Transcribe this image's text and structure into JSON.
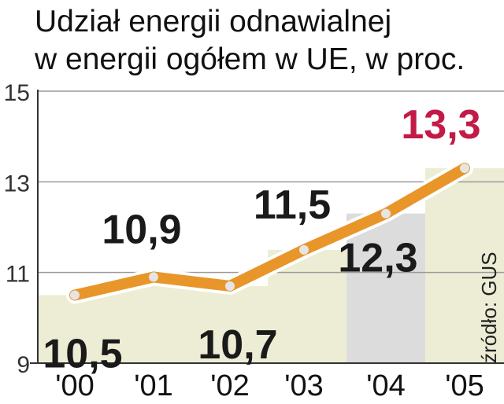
{
  "title_lines": [
    "Udział energii odnawialnej",
    "w energii ogółem w UE, w proc."
  ],
  "source": "źródło: GUS",
  "colors": {
    "line": "#e8962a",
    "marker": "#e5e5e5",
    "highlight_label": "#c41a48",
    "label": "#1a1a1a",
    "bar_light": "#ededd6",
    "bar_grey": "#dcdcdc",
    "axis": "#333333",
    "grid": "#9a9a9a"
  },
  "chart_data": {
    "type": "line",
    "title": "Udział energii odnawialnej w energii ogółem w UE, w proc.",
    "categories": [
      "'00",
      "'01",
      "'02",
      "'03",
      "'04",
      "'05"
    ],
    "values": [
      10.5,
      10.9,
      10.7,
      11.5,
      12.3,
      13.3
    ],
    "value_labels": [
      "10,5",
      "10,9",
      "10,7",
      "11,5",
      "12,3",
      "13,3"
    ],
    "y_ticks": [
      9,
      11,
      13,
      15
    ],
    "ylim": [
      9,
      15
    ],
    "xlabel": "",
    "ylabel": "",
    "grid": true,
    "highlight_index": 5
  }
}
